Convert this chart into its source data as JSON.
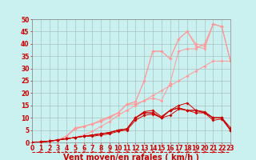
{
  "background_color": "#caf0f0",
  "grid_color": "#a0b8b8",
  "xlabel": "Vent moyen/en rafales ( km/h )",
  "xlim": [
    0,
    23
  ],
  "ylim": [
    0,
    50
  ],
  "yticks": [
    0,
    5,
    10,
    15,
    20,
    25,
    30,
    35,
    40,
    45,
    50
  ],
  "xticks": [
    0,
    1,
    2,
    3,
    4,
    5,
    6,
    7,
    8,
    9,
    10,
    11,
    12,
    13,
    14,
    15,
    16,
    17,
    18,
    19,
    20,
    21,
    22,
    23
  ],
  "tick_color": "#cc0000",
  "xlabel_color": "#cc0000",
  "tick_fontsize": 5.5,
  "label_fontsize": 7,
  "x_values": [
    0,
    1,
    2,
    3,
    4,
    5,
    6,
    7,
    8,
    9,
    10,
    11,
    12,
    13,
    14,
    15,
    16,
    17,
    18,
    19,
    20,
    21,
    22,
    23
  ],
  "series_light": [
    [
      0,
      0.3,
      0.6,
      1.0,
      1.5,
      2.0,
      3.0,
      4.5,
      6.5,
      8.5,
      11.0,
      13.0,
      15.0,
      17.0,
      19.0,
      21.0,
      23.0,
      25.0,
      27.0,
      29.0,
      31.0,
      33.0,
      33.0,
      33.0
    ],
    [
      0,
      0.2,
      0.5,
      0.8,
      2.5,
      6.0,
      6.5,
      7.5,
      8.5,
      10.0,
      12.0,
      15.5,
      15.5,
      17.0,
      18.0,
      17.0,
      24.0,
      37.0,
      38.0,
      38.0,
      40.0,
      48.0,
      47.0,
      33.0
    ],
    [
      0,
      0.2,
      0.5,
      1.0,
      2.5,
      5.5,
      6.5,
      7.5,
      9.0,
      10.5,
      12.0,
      15.5,
      16.5,
      25.0,
      37.0,
      37.0,
      34.0,
      42.0,
      45.0,
      40.0,
      39.0,
      48.0,
      47.0,
      33.0
    ],
    [
      0,
      0.2,
      0.5,
      1.0,
      2.5,
      5.5,
      6.5,
      7.5,
      9.0,
      10.5,
      12.0,
      15.5,
      16.5,
      25.0,
      37.0,
      37.0,
      34.0,
      42.0,
      45.0,
      39.0,
      38.0,
      48.0,
      47.0,
      33.0
    ]
  ],
  "series_dark": [
    [
      0,
      0.2,
      0.5,
      1.0,
      1.5,
      2.0,
      2.5,
      3.0,
      3.5,
      4.0,
      5.0,
      5.5,
      10.0,
      12.5,
      13.0,
      10.5,
      13.0,
      15.0,
      16.0,
      13.0,
      12.5,
      10.0,
      10.0,
      6.0
    ],
    [
      0,
      0.2,
      0.5,
      1.0,
      1.5,
      2.0,
      2.5,
      3.0,
      3.5,
      4.0,
      5.0,
      5.5,
      10.0,
      12.0,
      12.0,
      10.0,
      13.0,
      14.0,
      13.0,
      13.0,
      12.0,
      10.0,
      10.0,
      5.0
    ],
    [
      0,
      0.2,
      0.5,
      1.0,
      1.5,
      2.0,
      2.5,
      3.0,
      3.5,
      4.0,
      5.0,
      5.5,
      10.0,
      12.0,
      12.0,
      10.0,
      13.0,
      14.0,
      13.0,
      13.0,
      12.0,
      10.0,
      10.0,
      5.0
    ],
    [
      0,
      0.2,
      0.5,
      1.0,
      1.5,
      2.0,
      2.5,
      2.5,
      3.0,
      3.5,
      4.5,
      5.0,
      9.0,
      11.0,
      11.5,
      10.0,
      11.0,
      13.5,
      13.0,
      12.0,
      12.0,
      9.0,
      9.5,
      5.0
    ]
  ],
  "color_light": "#ff9999",
  "color_dark": "#cc0000",
  "marker_size_light": 2.0,
  "marker_size_dark": 2.0,
  "linewidth_light": 0.7,
  "linewidth_dark": 0.7
}
